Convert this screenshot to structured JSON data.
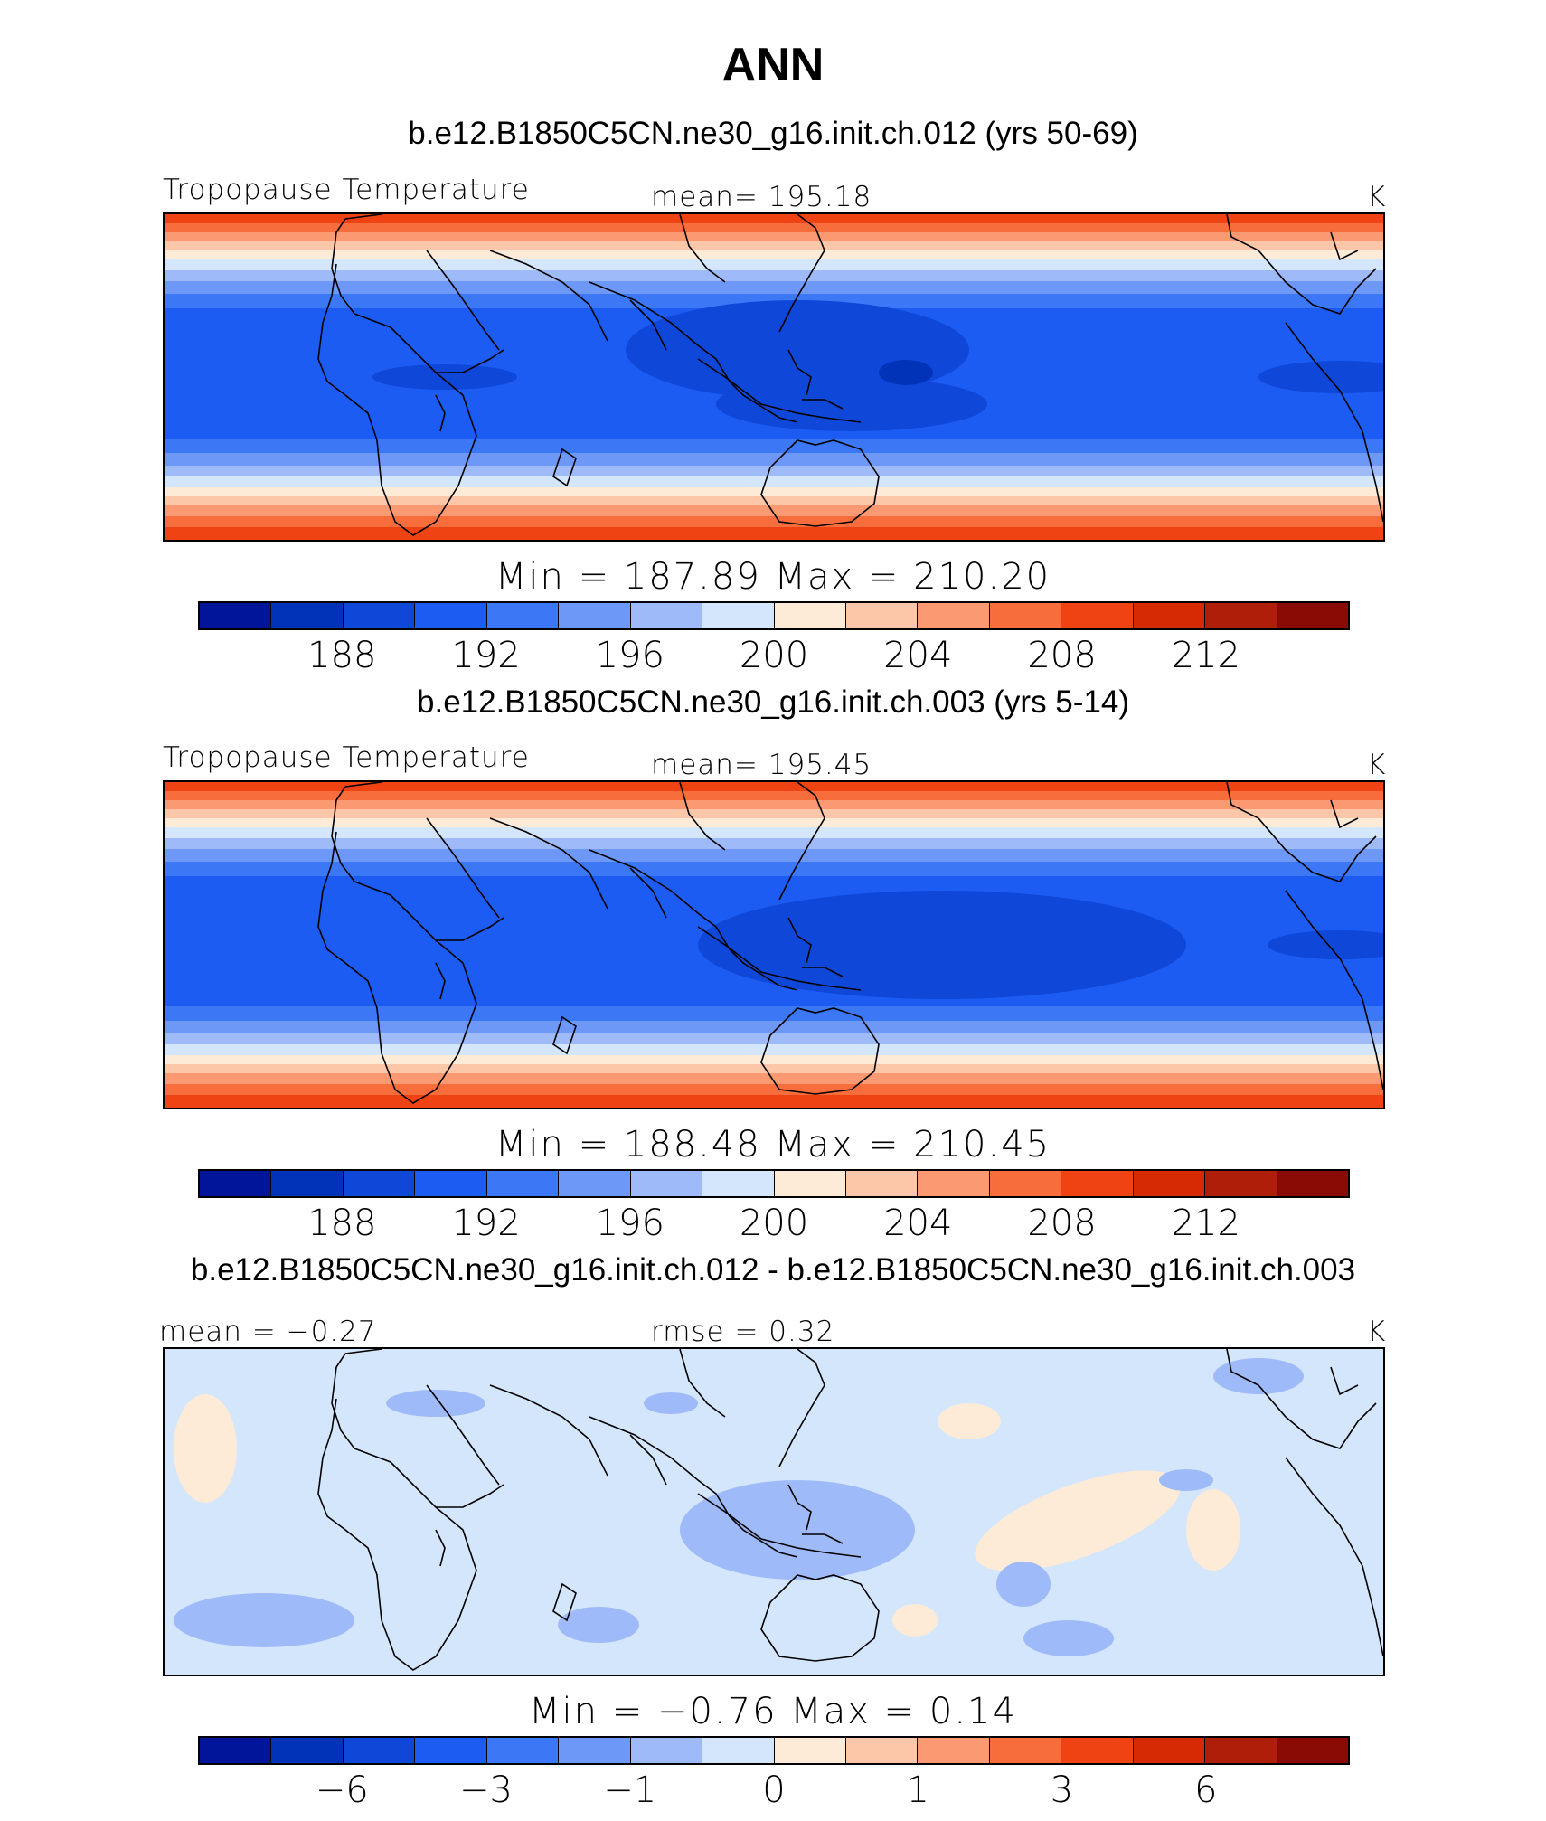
{
  "title": "ANN",
  "colors": [
    "#00159a",
    "#0033b8",
    "#0f47d8",
    "#1c5cf2",
    "#3c78f6",
    "#6e98f8",
    "#9fbaf9",
    "#d4e6fb",
    "#fdebd7",
    "#fcc6a8",
    "#fb9a72",
    "#f86d3c",
    "#ef4313",
    "#d62a04",
    "#ae1e08",
    "#8a0a06"
  ],
  "panels": [
    {
      "case_title": "b.e12.B1850C5CN.ne30_g16.init.ch.012 (yrs 50-69)",
      "left_label": "Tropopause Temperature",
      "center_label": "mean= 195.18",
      "units": "K",
      "minmax": "Min  =  187.89  Max  =  210.20",
      "ticks": [
        "188",
        "192",
        "196",
        "200",
        "204",
        "208",
        "212"
      ]
    },
    {
      "case_title": "b.e12.B1850C5CN.ne30_g16.init.ch.003 (yrs 5-14)",
      "left_label": "Tropopause Temperature",
      "center_label": "mean= 195.45",
      "units": "K",
      "minmax": "Min  =  188.48  Max  =  210.45",
      "ticks": [
        "188",
        "192",
        "196",
        "200",
        "204",
        "208",
        "212"
      ]
    },
    {
      "case_title": "b.e12.B1850C5CN.ne30_g16.init.ch.012 - b.e12.B1850C5CN.ne30_g16.init.ch.003",
      "left_label": "mean =   −0.27",
      "center_label": "rmse =     0.32",
      "units": "K",
      "minmax": "Min  =    −0.76  Max  =      0.14",
      "ticks": [
        "−6",
        "−3",
        "−1",
        "0",
        "1",
        "3",
        "6"
      ]
    }
  ]
}
